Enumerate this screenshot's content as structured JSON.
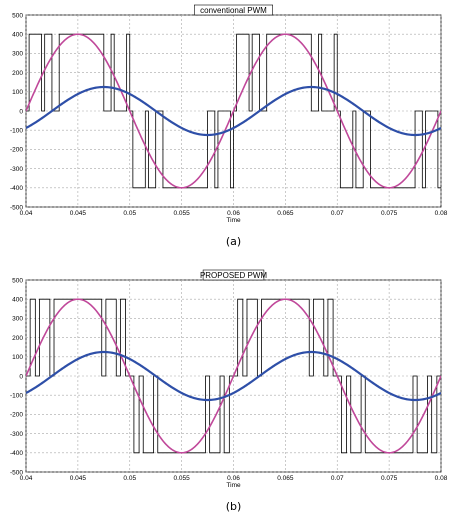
{
  "chart_data": [
    {
      "type": "line",
      "title": "conventional PWM",
      "caption": "(a)",
      "xlabel": "Time",
      "ylabel": "",
      "xlim": [
        0.04,
        0.08
      ],
      "ylim": [
        -500,
        500
      ],
      "xticks": [
        "0.04",
        "0.045",
        "0.05",
        "0.055",
        "0.06",
        "0.065",
        "0.07",
        "0.075",
        "0.08"
      ],
      "yticks": [
        "500",
        "400",
        "300",
        "200",
        "100",
        "0",
        "-100",
        "-200",
        "-300",
        "-400",
        "-500"
      ],
      "grid": true,
      "series": [
        {
          "kind": "pwm",
          "color": "#000000",
          "amplitude": 400,
          "x": [
            0.04,
            0.0403,
            0.0415,
            0.0418,
            0.0425,
            0.0432,
            0.044,
            0.045,
            0.046,
            0.0468,
            0.0475,
            0.0482,
            0.0485,
            0.0497,
            0.05
          ],
          "y": [
            0,
            400,
            0,
            400,
            0,
            400,
            400,
            400,
            400,
            400,
            0,
            400,
            0,
            400,
            0
          ]
        },
        {
          "kind": "sine",
          "color": "#c0489a",
          "amplitude": 400,
          "frequency": 50,
          "phase_deg": 0
        },
        {
          "kind": "sine",
          "color": "#2e4fa8",
          "amplitude": 125,
          "frequency": 50,
          "phase_deg": -45
        }
      ]
    },
    {
      "type": "line",
      "title": "PROPOSED PWM",
      "caption": "(b)",
      "xlabel": "Time",
      "ylabel": "",
      "xlim": [
        0.04,
        0.08
      ],
      "ylim": [
        -500,
        500
      ],
      "xticks": [
        "0.04",
        "0.045",
        "0.05",
        "0.055",
        "0.06",
        "0.065",
        "0.07",
        "0.075",
        "0.08"
      ],
      "yticks": [
        "500",
        "400",
        "300",
        "200",
        "100",
        "0",
        "-100",
        "-200",
        "-300",
        "-400",
        "-500"
      ],
      "grid": true,
      "series": [
        {
          "kind": "pwm",
          "color": "#000000",
          "amplitude": 400,
          "x": [
            0.04,
            0.0404,
            0.0409,
            0.0413,
            0.0423,
            0.0427,
            0.0438,
            0.0462,
            0.0473,
            0.0477,
            0.0487,
            0.0491,
            0.0496,
            0.05
          ],
          "y": [
            0,
            400,
            0,
            400,
            0,
            400,
            400,
            400,
            0,
            400,
            0,
            400,
            0,
            0
          ]
        },
        {
          "kind": "sine",
          "color": "#c0489a",
          "amplitude": 400,
          "frequency": 50,
          "phase_deg": 0
        },
        {
          "kind": "sine",
          "color": "#2e4fa8",
          "amplitude": 125,
          "frequency": 50,
          "phase_deg": -45
        }
      ]
    }
  ]
}
